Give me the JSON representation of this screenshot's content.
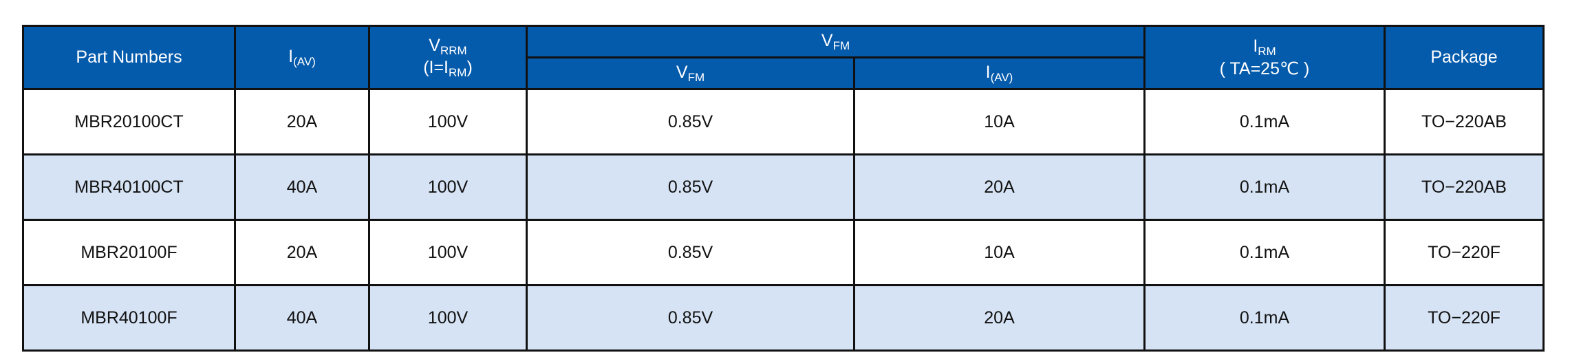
{
  "colors": {
    "header_bg": "#045aab",
    "alt_row_bg": "#d6e3f4"
  },
  "header": {
    "part_numbers": "Part Numbers",
    "iav": {
      "main": "I",
      "sub": "(AV)"
    },
    "vrrm": {
      "main": "V",
      "sub": "RRM",
      "line2_pre": "(I=I",
      "line2_sub": "RM",
      "line2_post": ")"
    },
    "vfm_group": {
      "main": "V",
      "sub": "FM"
    },
    "vfm": {
      "main": "V",
      "sub": "FM"
    },
    "vfm_iav": {
      "main": "I",
      "sub": "(AV)"
    },
    "irm": {
      "main": "I",
      "sub": "RM",
      "line2": "( TA=25℃ )"
    },
    "package": "Package"
  },
  "rows": [
    {
      "part": "MBR20100CT",
      "iav": "20A",
      "vrrm": "100V",
      "vfm": "0.85V",
      "vfm_iav": "10A",
      "irm": "0.1mA",
      "package": "TO−220AB"
    },
    {
      "part": "MBR40100CT",
      "iav": "40A",
      "vrrm": "100V",
      "vfm": "0.85V",
      "vfm_iav": "20A",
      "irm": "0.1mA",
      "package": "TO−220AB"
    },
    {
      "part": "MBR20100F",
      "iav": "20A",
      "vrrm": "100V",
      "vfm": "0.85V",
      "vfm_iav": "10A",
      "irm": "0.1mA",
      "package": "TO−220F"
    },
    {
      "part": "MBR40100F",
      "iav": "40A",
      "vrrm": "100V",
      "vfm": "0.85V",
      "vfm_iav": "20A",
      "irm": "0.1mA",
      "package": "TO−220F"
    }
  ]
}
